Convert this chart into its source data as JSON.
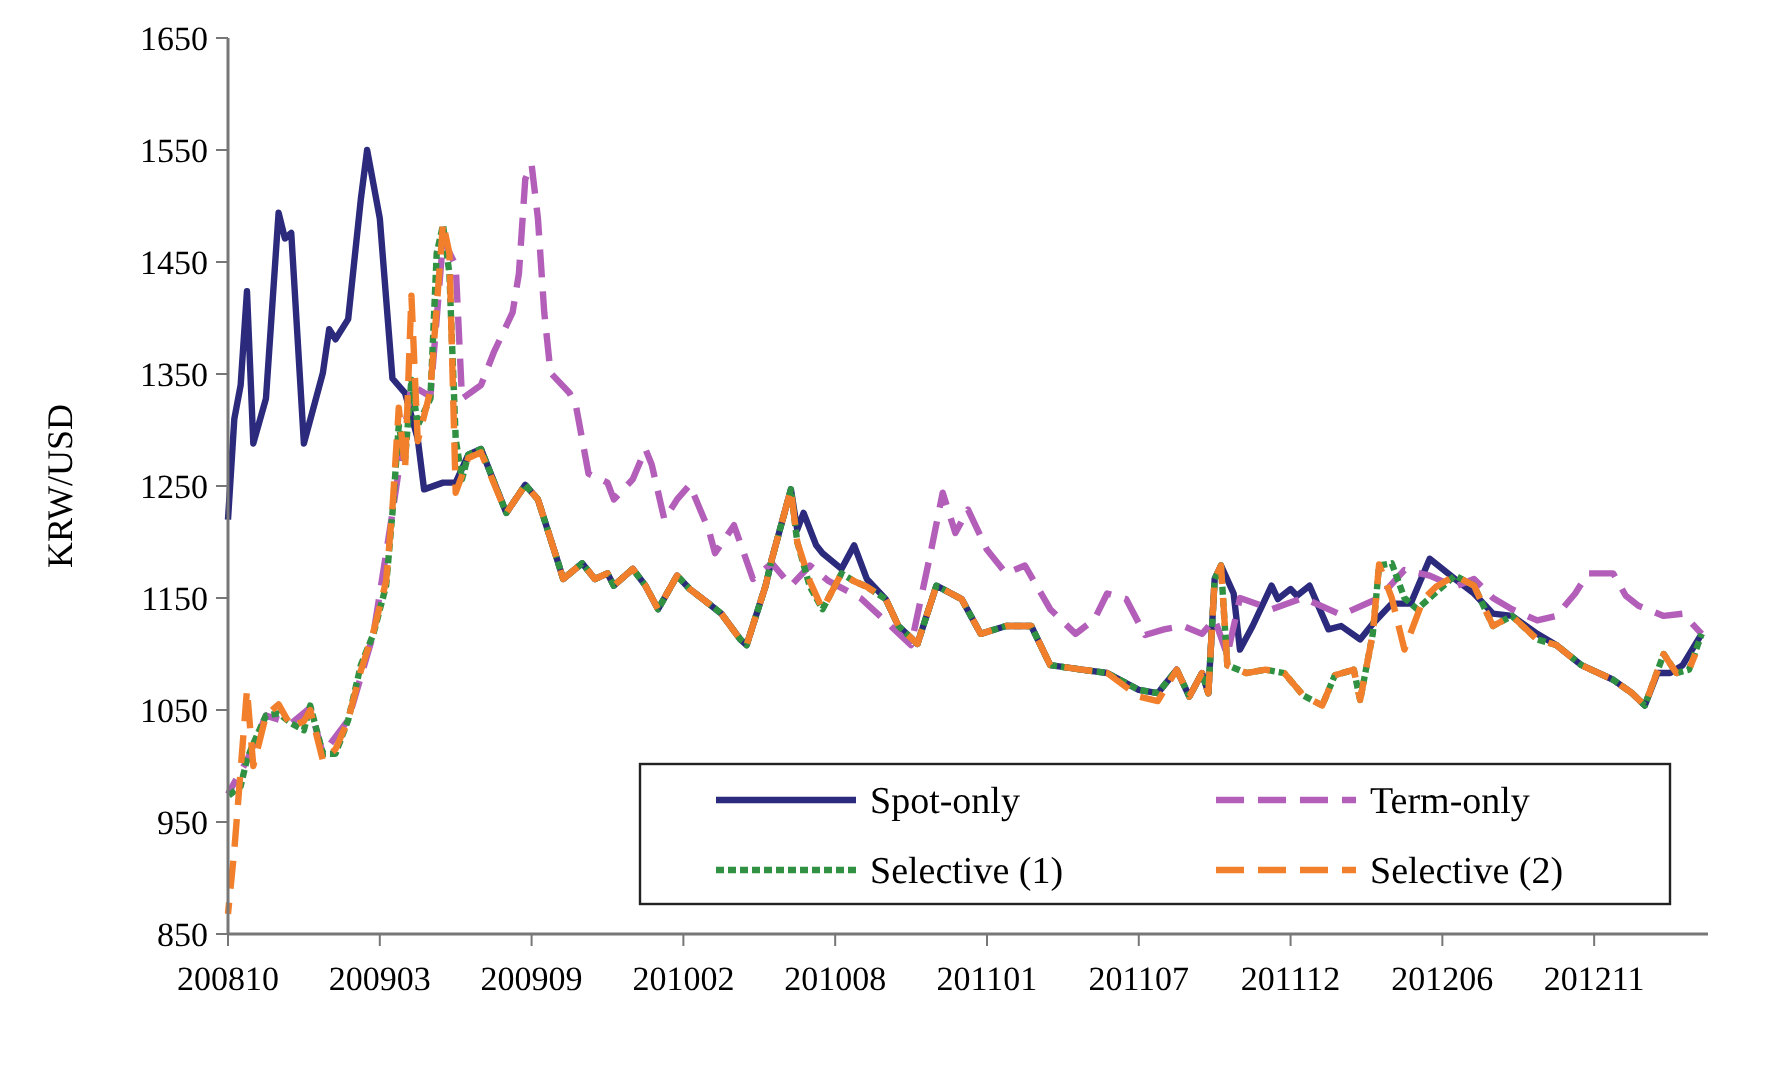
{
  "chart_data": {
    "type": "line",
    "ylabel": "KRW/USD",
    "xlim": [
      "2008-10-03",
      "2013-03-29"
    ],
    "ylim": [
      850,
      1650
    ],
    "xticks": [
      {
        "value": "2008-10-03",
        "label": "200810"
      },
      {
        "value": "2009-03-20",
        "label": "200903"
      },
      {
        "value": "2009-09-04",
        "label": "200909"
      },
      {
        "value": "2010-02-19",
        "label": "201002"
      },
      {
        "value": "2010-08-06",
        "label": "201008"
      },
      {
        "value": "2011-01-21",
        "label": "201101"
      },
      {
        "value": "2011-07-08",
        "label": "201107"
      },
      {
        "value": "2011-12-23",
        "label": "201112"
      },
      {
        "value": "2012-06-08",
        "label": "201206"
      },
      {
        "value": "2012-11-23",
        "label": "201211"
      }
    ],
    "yticks": [
      850,
      950,
      1050,
      1150,
      1250,
      1350,
      1450,
      1550,
      1650
    ],
    "grid": false,
    "legend": "bottom right",
    "series": [
      {
        "name": "Spot-only",
        "color": "#2b2a7c",
        "line_style": "solid",
        "x": [
          "2008-10-03",
          "2008-10-10",
          "2008-10-17",
          "2008-10-24",
          "2008-10-31",
          "2008-11-14",
          "2008-11-28",
          "2008-12-05",
          "2008-12-12",
          "2008-12-26",
          "2009-01-16",
          "2009-01-23",
          "2009-01-30",
          "2009-02-13",
          "2009-02-27",
          "2009-03-06",
          "2009-03-20",
          "2009-04-03",
          "2009-04-17",
          "2009-05-01",
          "2009-05-08",
          "2009-05-29",
          "2009-06-12",
          "2009-06-26",
          "2009-07-10",
          "2009-08-07",
          "2009-08-28",
          "2009-09-11",
          "2009-10-02",
          "2009-10-09",
          "2009-10-30",
          "2009-11-13",
          "2009-11-27",
          "2009-12-04",
          "2009-12-25",
          "2010-01-08",
          "2010-01-22",
          "2010-02-12",
          "2010-02-26",
          "2010-03-19",
          "2010-04-02",
          "2010-04-23",
          "2010-04-30",
          "2010-05-21",
          "2010-05-28",
          "2010-06-18",
          "2010-06-25",
          "2010-07-02",
          "2010-07-16",
          "2010-07-23",
          "2010-08-13",
          "2010-08-27",
          "2010-09-10",
          "2010-10-01",
          "2010-10-15",
          "2010-11-05",
          "2010-11-26",
          "2010-12-24",
          "2011-01-14",
          "2011-02-11",
          "2011-03-11",
          "2011-04-01",
          "2011-05-06",
          "2011-06-03",
          "2011-07-08",
          "2011-07-29",
          "2011-08-19",
          "2011-09-02",
          "2011-09-16",
          "2011-09-23",
          "2011-09-30",
          "2011-10-07",
          "2011-10-21",
          "2011-10-28",
          "2011-11-11",
          "2011-12-02",
          "2011-12-09",
          "2011-12-23",
          "2011-12-30",
          "2012-01-13",
          "2012-02-03",
          "2012-02-17",
          "2012-03-09",
          "2012-03-23",
          "2012-04-13",
          "2012-05-04",
          "2012-05-25",
          "2012-06-22",
          "2012-07-13",
          "2012-08-03",
          "2012-08-24",
          "2012-09-21",
          "2012-10-12",
          "2012-11-09",
          "2012-12-14",
          "2013-01-04",
          "2013-01-18",
          "2013-02-01",
          "2013-02-15",
          "2013-03-01",
          "2013-03-22"
        ],
        "values": [
          1220,
          1310,
          1340,
          1424,
          1288,
          1328,
          1494,
          1471,
          1476,
          1288,
          1351,
          1390,
          1381,
          1399,
          1506,
          1550,
          1489,
          1346,
          1333,
          1292,
          1247,
          1253,
          1253,
          1278,
          1283,
          1226,
          1251,
          1238,
          1185,
          1167,
          1181,
          1167,
          1172,
          1161,
          1176,
          1161,
          1140,
          1170,
          1158,
          1145,
          1136,
          1113,
          1108,
          1161,
          1185,
          1247,
          1211,
          1226,
          1197,
          1190,
          1176,
          1197,
          1167,
          1149,
          1125,
          1109,
          1161,
          1149,
          1118,
          1125,
          1125,
          1090,
          1086,
          1083,
          1068,
          1065,
          1086,
          1062,
          1083,
          1065,
          1167,
          1179,
          1154,
          1104,
          1125,
          1161,
          1149,
          1158,
          1152,
          1161,
          1122,
          1125,
          1113,
          1127,
          1145,
          1145,
          1185,
          1167,
          1154,
          1136,
          1134,
          1118,
          1108,
          1090,
          1077,
          1065,
          1054,
          1083,
          1083,
          1090,
          1118
        ]
      },
      {
        "name": "Term-only",
        "color": "#b35fba",
        "line_style": "dashed",
        "x": [
          "2008-10-03",
          "2008-10-24",
          "2008-11-14",
          "2008-12-12",
          "2009-01-02",
          "2009-01-16",
          "2009-02-13",
          "2009-03-13",
          "2009-04-03",
          "2009-04-24",
          "2009-05-15",
          "2009-05-29",
          "2009-06-12",
          "2009-06-19",
          "2009-07-10",
          "2009-07-24",
          "2009-08-14",
          "2009-08-21",
          "2009-08-28",
          "2009-09-04",
          "2009-09-11",
          "2009-09-18",
          "2009-09-25",
          "2009-10-16",
          "2009-10-23",
          "2009-11-06",
          "2009-11-27",
          "2009-12-04",
          "2009-12-25",
          "2010-01-08",
          "2010-01-15",
          "2010-01-29",
          "2010-02-12",
          "2010-02-26",
          "2010-03-19",
          "2010-03-26",
          "2010-04-16",
          "2010-05-07",
          "2010-05-28",
          "2010-06-18",
          "2010-07-09",
          "2010-07-30",
          "2010-09-03",
          "2010-10-29",
          "2010-11-19",
          "2010-12-03",
          "2010-12-17",
          "2010-12-31",
          "2011-01-21",
          "2011-02-11",
          "2011-03-04",
          "2011-04-01",
          "2011-04-29",
          "2011-05-20",
          "2011-06-03",
          "2011-06-24",
          "2011-07-15",
          "2011-08-05",
          "2011-08-26",
          "2011-09-16",
          "2011-09-30",
          "2011-10-14",
          "2011-10-28",
          "2011-12-02",
          "2012-01-06",
          "2012-02-17",
          "2012-03-30",
          "2012-04-27",
          "2012-05-25",
          "2012-06-22",
          "2012-07-13",
          "2012-08-03",
          "2012-08-24",
          "2012-09-21",
          "2012-10-12",
          "2012-11-02",
          "2012-11-16",
          "2012-12-14",
          "2012-12-28",
          "2013-01-11",
          "2013-02-08",
          "2013-03-01",
          "2013-03-22"
        ],
        "values": [
          975,
          1005,
          1045,
          1038,
          1052,
          1011,
          1041,
          1118,
          1226,
          1340,
          1330,
          1470,
          1447,
          1328,
          1340,
          1369,
          1405,
          1440,
          1524,
          1537,
          1489,
          1405,
          1351,
          1333,
          1322,
          1261,
          1253,
          1238,
          1256,
          1283,
          1269,
          1220,
          1238,
          1251,
          1211,
          1190,
          1215,
          1167,
          1181,
          1161,
          1179,
          1165,
          1150,
          1108,
          1188,
          1244,
          1208,
          1229,
          1193,
          1172,
          1179,
          1140,
          1118,
          1131,
          1154,
          1149,
          1117,
          1122,
          1125,
          1118,
          1131,
          1099,
          1150,
          1140,
          1150,
          1135,
          1150,
          1175,
          1170,
          1160,
          1167,
          1150,
          1140,
          1130,
          1134,
          1154,
          1172,
          1172,
          1152,
          1143,
          1134,
          1136,
          1118
        ]
      },
      {
        "name": "Selective (1)",
        "color": "#2f9141",
        "line_style": "dotted",
        "x": [
          "2008-10-03",
          "2008-10-17",
          "2008-10-24",
          "2008-10-31",
          "2008-11-14",
          "2008-11-28",
          "2008-12-12",
          "2008-12-26",
          "2009-01-02",
          "2009-01-16",
          "2009-01-30",
          "2009-02-13",
          "2009-02-27",
          "2009-03-13",
          "2009-03-27",
          "2009-04-03",
          "2009-04-10",
          "2009-04-17",
          "2009-04-24",
          "2009-05-01",
          "2009-05-15",
          "2009-05-22",
          "2009-05-29",
          "2009-06-05",
          "2009-06-12",
          "2009-06-19",
          "2009-06-26",
          "2009-07-10",
          "2009-08-07",
          "2009-08-28",
          "2009-09-11",
          "2009-10-02",
          "2009-10-09",
          "2009-10-30",
          "2009-11-13",
          "2009-11-27",
          "2009-12-04",
          "2009-12-25",
          "2010-01-08",
          "2010-01-22",
          "2010-02-12",
          "2010-02-26",
          "2010-03-19",
          "2010-04-02",
          "2010-04-23",
          "2010-04-30",
          "2010-05-21",
          "2010-05-28",
          "2010-06-18",
          "2010-06-25",
          "2010-07-09",
          "2010-07-23",
          "2010-08-13",
          "2010-08-27",
          "2010-09-10",
          "2010-10-01",
          "2010-10-15",
          "2010-11-05",
          "2010-11-26",
          "2010-12-24",
          "2011-01-14",
          "2011-02-11",
          "2011-03-11",
          "2011-04-01",
          "2011-05-06",
          "2011-06-03",
          "2011-07-08",
          "2011-07-29",
          "2011-08-19",
          "2011-09-02",
          "2011-09-16",
          "2011-09-23",
          "2011-09-30",
          "2011-10-07",
          "2011-10-14",
          "2011-11-04",
          "2011-11-25",
          "2011-12-16",
          "2012-01-06",
          "2012-01-27",
          "2012-02-10",
          "2012-03-02",
          "2012-03-09",
          "2012-03-23",
          "2012-03-30",
          "2012-04-13",
          "2012-04-27",
          "2012-05-11",
          "2012-06-01",
          "2012-06-22",
          "2012-07-13",
          "2012-08-03",
          "2012-08-24",
          "2012-09-21",
          "2012-10-12",
          "2012-11-09",
          "2012-12-14",
          "2013-01-04",
          "2013-01-18",
          "2013-02-08",
          "2013-02-22",
          "2013-03-08",
          "2013-03-22"
        ],
        "values": [
          973,
          982,
          1006,
          1020,
          1045,
          1047,
          1038,
          1032,
          1054,
          1011,
          1011,
          1041,
          1090,
          1118,
          1161,
          1226,
          1304,
          1274,
          1345,
          1304,
          1328,
          1458,
          1483,
          1440,
          1292,
          1256,
          1278,
          1283,
          1226,
          1251,
          1238,
          1185,
          1167,
          1181,
          1167,
          1172,
          1161,
          1176,
          1161,
          1140,
          1170,
          1158,
          1145,
          1136,
          1113,
          1108,
          1161,
          1185,
          1247,
          1200,
          1160,
          1140,
          1172,
          1165,
          1160,
          1149,
          1125,
          1109,
          1161,
          1149,
          1118,
          1125,
          1125,
          1090,
          1086,
          1083,
          1068,
          1065,
          1086,
          1062,
          1083,
          1065,
          1167,
          1179,
          1090,
          1083,
          1086,
          1083,
          1063,
          1054,
          1081,
          1086,
          1059,
          1118,
          1179,
          1181,
          1150,
          1140,
          1155,
          1170,
          1161,
          1125,
          1134,
          1113,
          1108,
          1090,
          1077,
          1065,
          1054,
          1100,
          1083,
          1086,
          1118
        ]
      },
      {
        "name": "Selective (2)",
        "color": "#f27f2b",
        "line_style": "dashed",
        "x": [
          "2008-10-03",
          "2008-10-10",
          "2008-10-24",
          "2008-10-31",
          "2008-11-14",
          "2008-11-28",
          "2008-12-12",
          "2008-12-26",
          "2009-01-02",
          "2009-01-16",
          "2009-01-30",
          "2009-02-13",
          "2009-02-27",
          "2009-03-13",
          "2009-03-27",
          "2009-04-03",
          "2009-04-10",
          "2009-04-17",
          "2009-04-24",
          "2009-05-01",
          "2009-05-15",
          "2009-05-29",
          "2009-06-05",
          "2009-06-12",
          "2009-06-26",
          "2009-07-10",
          "2009-08-07",
          "2009-08-28",
          "2009-09-11",
          "2009-10-02",
          "2009-10-09",
          "2009-10-30",
          "2009-11-13",
          "2009-11-27",
          "2009-12-04",
          "2009-12-25",
          "2010-01-08",
          "2010-01-22",
          "2010-02-12",
          "2010-02-26",
          "2010-03-19",
          "2010-04-02",
          "2010-04-23",
          "2010-04-30",
          "2010-05-21",
          "2010-05-28",
          "2010-06-18",
          "2010-06-25",
          "2010-07-09",
          "2010-07-23",
          "2010-08-13",
          "2010-08-27",
          "2010-09-10",
          "2010-10-01",
          "2010-10-15",
          "2010-11-05",
          "2010-11-26",
          "2010-12-24",
          "2011-01-14",
          "2011-02-11",
          "2011-03-11",
          "2011-04-01",
          "2011-05-06",
          "2011-06-03",
          "2011-07-08",
          "2011-07-29",
          "2011-08-19",
          "2011-09-02",
          "2011-09-16",
          "2011-09-23",
          "2011-09-30",
          "2011-10-07",
          "2011-10-14",
          "2011-11-04",
          "2011-11-25",
          "2011-12-16",
          "2012-01-06",
          "2012-01-27",
          "2012-02-10",
          "2012-03-02",
          "2012-03-09",
          "2012-03-23",
          "2012-03-30",
          "2012-04-13",
          "2012-04-27",
          "2012-05-18",
          "2012-06-01",
          "2012-06-22",
          "2012-07-13",
          "2012-08-03",
          "2012-08-24",
          "2012-09-21",
          "2012-10-12",
          "2012-11-09",
          "2012-12-14",
          "2013-01-04",
          "2013-01-18",
          "2013-02-08",
          "2013-02-22",
          "2013-03-08",
          "2013-03-15"
        ],
        "values": [
          868,
          925,
          1068,
          1000,
          1045,
          1055,
          1035,
          1040,
          1050,
          1005,
          1015,
          1041,
          1085,
          1120,
          1165,
          1230,
          1320,
          1265,
          1420,
          1290,
          1335,
          1485,
          1458,
          1244,
          1275,
          1280,
          1226,
          1251,
          1238,
          1185,
          1167,
          1181,
          1167,
          1172,
          1161,
          1176,
          1161,
          1140,
          1170,
          1158,
          1145,
          1136,
          1113,
          1108,
          1161,
          1185,
          1247,
          1200,
          1165,
          1140,
          1172,
          1165,
          1160,
          1149,
          1125,
          1109,
          1161,
          1149,
          1118,
          1125,
          1125,
          1090,
          1086,
          1083,
          1062,
          1058,
          1086,
          1062,
          1083,
          1065,
          1167,
          1179,
          1090,
          1083,
          1086,
          1083,
          1063,
          1054,
          1081,
          1086,
          1059,
          1118,
          1180,
          1150,
          1104,
          1149,
          1160,
          1170,
          1161,
          1125,
          1134,
          1113,
          1108,
          1090,
          1077,
          1065,
          1054,
          1100,
          1083,
          1086,
          1100
        ]
      }
    ]
  }
}
